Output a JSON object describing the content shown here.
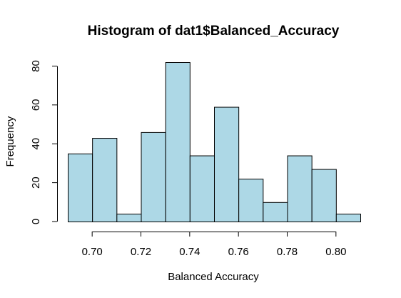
{
  "chart_data": {
    "type": "bar",
    "title": "Histogram of dat1$Balanced_Accuracy",
    "xlabel": "Balanced Accuracy",
    "ylabel": "Frequency",
    "bar_color": "#add8e6",
    "bin_edges": [
      0.69,
      0.7,
      0.71,
      0.72,
      0.73,
      0.74,
      0.75,
      0.76,
      0.77,
      0.78,
      0.79,
      0.8,
      0.81
    ],
    "values": [
      35,
      43,
      4,
      46,
      82,
      34,
      59,
      22,
      10,
      34,
      27,
      4
    ],
    "xticks": [
      0.7,
      0.72,
      0.74,
      0.76,
      0.78,
      0.8
    ],
    "xtick_labels": [
      "0.70",
      "0.72",
      "0.74",
      "0.76",
      "0.78",
      "0.80"
    ],
    "yticks": [
      0,
      20,
      40,
      60,
      80
    ],
    "ytick_labels": [
      "0",
      "20",
      "40",
      "60",
      "80"
    ],
    "xlim": [
      0.69,
      0.81
    ],
    "ylim": [
      0,
      82
    ]
  }
}
